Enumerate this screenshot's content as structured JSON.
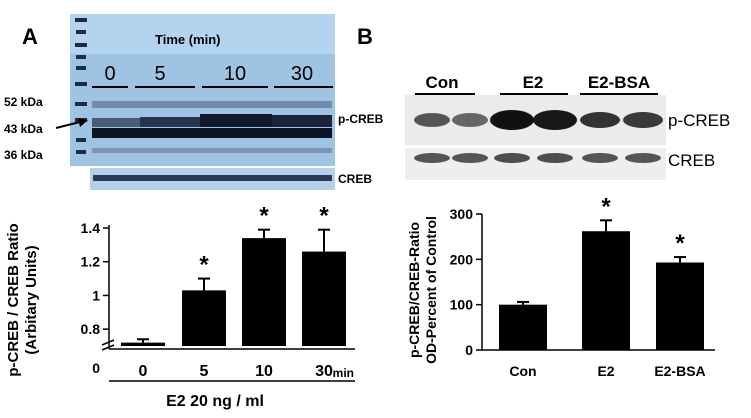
{
  "panel_a": {
    "letter": "A",
    "blot_header": "Time (min)",
    "blot_time_labels": [
      "0",
      "5",
      "10",
      "30"
    ],
    "mw_markers": [
      "52 kDa",
      "43 kDa",
      "36 kDa"
    ],
    "pcreb_label": "p-CREB",
    "creb_label": "CREB"
  },
  "panel_b": {
    "letter": "B",
    "blot_group_labels": [
      "Con",
      "E2",
      "E2-BSA"
    ],
    "pcreb_label": "p-CREB",
    "creb_label": "CREB"
  },
  "chart_data": [
    {
      "type": "bar",
      "categories": [
        "0",
        "5",
        "10",
        "30"
      ],
      "values": [
        0.72,
        1.03,
        1.34,
        1.26
      ],
      "errors": [
        0.02,
        0.07,
        0.05,
        0.13
      ],
      "significant": [
        false,
        true,
        true,
        true
      ],
      "ylabel": "p-CREB / CREB Ratio (Arbitary Units)",
      "ylabel_lines": [
        "p-CREB / CREB Ratio",
        "(Arbitary Units)"
      ],
      "xlabel": "E2 20 ng / ml",
      "x_unit": "min",
      "y_axis_break": true,
      "yticks": [
        "0.8",
        "1",
        "1.2",
        "1.4"
      ],
      "y_zero_label": "0",
      "ylim": [
        0.7,
        1.4
      ],
      "significance_marker": "*",
      "grid": false,
      "bar_color": "#000000"
    },
    {
      "type": "bar",
      "categories": [
        "Con",
        "E2",
        "E2-BSA"
      ],
      "values": [
        100,
        262,
        193
      ],
      "errors": [
        6,
        24,
        12
      ],
      "significant": [
        false,
        true,
        true
      ],
      "ylabel": "p-CREB/CREB-Ratio OD-Percent of Control",
      "ylabel_lines": [
        "p-CREB/CREB-Ratio",
        "OD-Percent of Control"
      ],
      "yticks": [
        "0",
        "100",
        "200",
        "300"
      ],
      "ylim": [
        0,
        300
      ],
      "significance_marker": "*",
      "grid": false,
      "bar_color": "#000000"
    }
  ]
}
